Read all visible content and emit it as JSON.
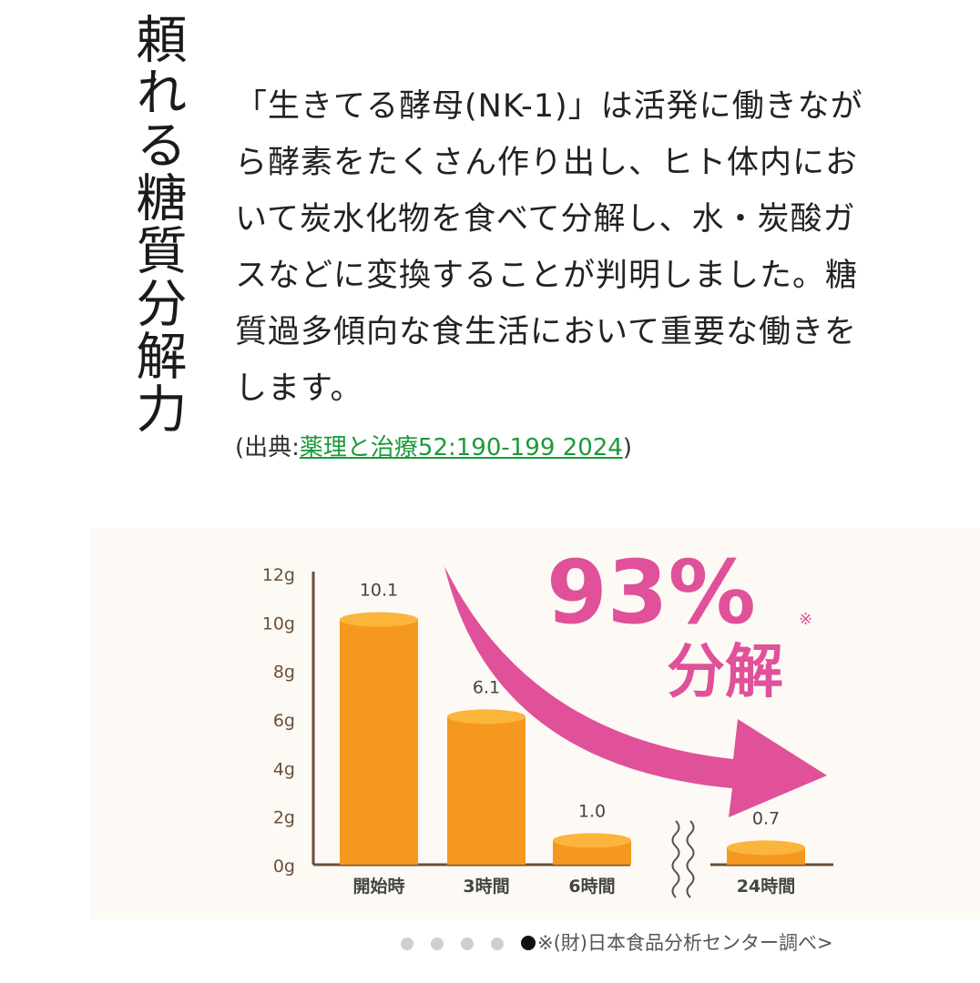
{
  "title_vertical": "頼れる糖質分解力",
  "paragraph": "「生きてる酵母(NK-1)」は活発に働きながら酵素をたくさん作り出し、ヒト体内において炭水化物を食べて分解し、水・炭酸ガスなどに変換することが判明しました。糖質過多傾向な食生活において重要な働きをします。",
  "citation": {
    "prefix": "(出典:",
    "link_text": "薬理と治療52:190-199 2024",
    "suffix": ")"
  },
  "chart_data": {
    "type": "bar",
    "categories": [
      "開始時",
      "3時間",
      "6時間",
      "24時間"
    ],
    "values": [
      10.1,
      6.1,
      1.0,
      0.7
    ],
    "value_labels": [
      "10.1",
      "6.1",
      "1.0",
      "0.7"
    ],
    "y_ticks": [
      "0g",
      "2g",
      "4g",
      "6g",
      "8g",
      "10g",
      "12g"
    ],
    "ylim": [
      0,
      12
    ],
    "xlabel": "",
    "ylabel": "",
    "axis_break_between": [
      "6時間",
      "24時間"
    ],
    "callout": {
      "percent": "93%",
      "note_mark": "※",
      "label": "分解"
    },
    "colors": {
      "bar": "#f5981f",
      "bar_top": "#fbb53c",
      "axis": "#6b4f3a",
      "tick_text": "#6b4f3a",
      "label_text": "#444444",
      "arrow": "#e0519a",
      "callout_text": "#e0519a"
    }
  },
  "footer": {
    "source_note": "※(財)日本食品分析センター調べ>",
    "carousel_dot_count": 5,
    "carousel_active_index": 4
  }
}
